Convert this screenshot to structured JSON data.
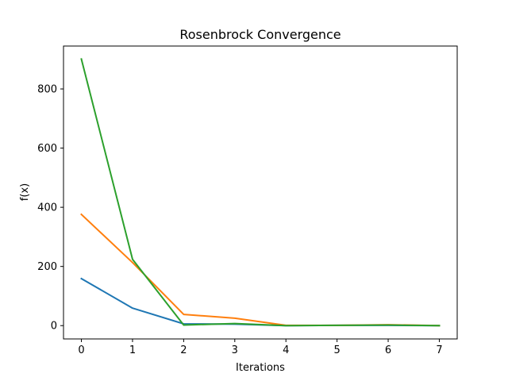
{
  "chart_data": {
    "type": "line",
    "title": "Rosenbrock Convergence",
    "xlabel": "Iterations",
    "ylabel": "f(x)",
    "xlim": [
      -0.35,
      7.35
    ],
    "ylim": [
      -45,
      945
    ],
    "x_ticks": [
      0,
      1,
      2,
      3,
      4,
      5,
      6,
      7
    ],
    "y_ticks": [
      0,
      200,
      400,
      600,
      800
    ],
    "grid": false,
    "legend": "none",
    "x": [
      0,
      1,
      2,
      3,
      4,
      5,
      6,
      7
    ],
    "series": [
      {
        "color": "#1f77b4",
        "values": [
          159,
          59,
          6,
          5,
          0,
          1,
          1,
          0
        ]
      },
      {
        "color": "#ff7f0e",
        "values": [
          376,
          213,
          38,
          25,
          1,
          1,
          3,
          0
        ]
      },
      {
        "color": "#2ca02c",
        "values": [
          901,
          224,
          2,
          7,
          0,
          1,
          2,
          0
        ]
      }
    ]
  }
}
